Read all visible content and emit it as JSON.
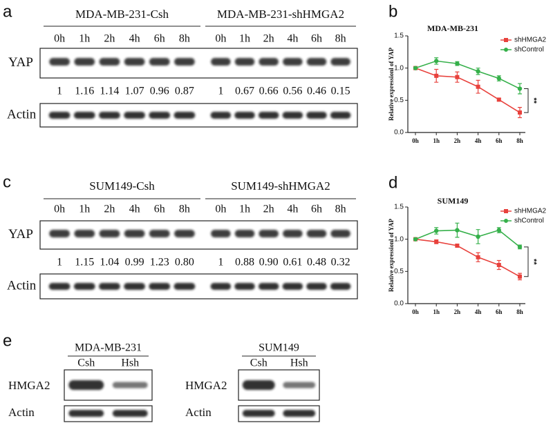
{
  "blots": [
    {
      "letter": "a",
      "groups": [
        {
          "name": "MDA-MB-231-Csh",
          "lanes": [
            "0h",
            "1h",
            "2h",
            "4h",
            "6h",
            "8h"
          ],
          "quant": [
            "1",
            "1.16",
            "1.14",
            "1.07",
            "0.96",
            "0.87"
          ]
        },
        {
          "name": "MDA-MB-231-shHMGA2",
          "lanes": [
            "0h",
            "1h",
            "2h",
            "4h",
            "6h",
            "8h"
          ],
          "quant": [
            "1",
            "0.67",
            "0.66",
            "0.56",
            "0.46",
            "0.15"
          ]
        }
      ],
      "rows": [
        "YAP",
        "Actin"
      ]
    },
    {
      "letter": "c",
      "groups": [
        {
          "name": "SUM149-Csh",
          "lanes": [
            "0h",
            "1h",
            "2h",
            "4h",
            "6h",
            "8h"
          ],
          "quant": [
            "1",
            "1.15",
            "1.04",
            "0.99",
            "1.23",
            "0.80"
          ]
        },
        {
          "name": "SUM149-shHMGA2",
          "lanes": [
            "0h",
            "1h",
            "2h",
            "4h",
            "6h",
            "8h"
          ],
          "quant": [
            "1",
            "0.88",
            "0.90",
            "0.61",
            "0.48",
            "0.32"
          ]
        }
      ],
      "rows": [
        "YAP",
        "Actin"
      ]
    },
    {
      "letter": "e",
      "groups": [
        {
          "name": "MDA-MB-231",
          "lanes": [
            "Csh",
            "Hsh"
          ],
          "rows": [
            "HMGA2",
            "Actin"
          ]
        },
        {
          "name": "SUM149",
          "lanes": [
            "Csh",
            "Hsh"
          ],
          "rows": [
            "HMGA2",
            "Actin"
          ]
        }
      ]
    }
  ],
  "chart_data": [
    {
      "type": "line",
      "letter": "b",
      "title": "MDA-MB-231",
      "ylabel": "Relative expressionl of YAP",
      "categories": [
        "0h",
        "1h",
        "2h",
        "4h",
        "6h",
        "8h"
      ],
      "ylim": [
        0,
        1.5
      ],
      "yticks": [
        {
          "value": 0,
          "label": "0.0"
        },
        0.5,
        {
          "value": 1,
          "label": "1.0"
        },
        1.5
      ],
      "legend": "upper right",
      "annotation": "**",
      "series": [
        {
          "name": "shHMGA2",
          "color": "#e8413c",
          "marker": "square",
          "values": [
            1,
            0.88,
            0.86,
            0.71,
            0.51,
            0.31
          ],
          "errors": [
            0,
            0.1,
            0.08,
            0.1,
            0.02,
            0.08
          ]
        },
        {
          "name": "shControl",
          "color": "#35b04a",
          "marker": "circle",
          "values": [
            1,
            1.11,
            1.07,
            0.95,
            0.84,
            0.68
          ],
          "errors": [
            0,
            0.05,
            0.03,
            0.05,
            0.04,
            0.08
          ]
        }
      ]
    },
    {
      "type": "line",
      "letter": "d",
      "title": "SUM149",
      "ylabel": "Relative expressionl of YAP",
      "categories": [
        "0h",
        "1h",
        "2h",
        "4h",
        "6h",
        "8h"
      ],
      "ylim": [
        0,
        1.5
      ],
      "yticks": [
        {
          "value": 0,
          "label": "0.0"
        },
        0.5,
        {
          "value": 1,
          "label": "1.0"
        },
        1.5
      ],
      "legend": "upper right",
      "annotation": "**",
      "series": [
        {
          "name": "shHMGA2",
          "color": "#e8413c",
          "marker": "square",
          "values": [
            1,
            0.96,
            0.9,
            0.72,
            0.6,
            0.42
          ],
          "errors": [
            0,
            0.03,
            0.02,
            0.07,
            0.07,
            0.05
          ]
        },
        {
          "name": "shControl",
          "color": "#35b04a",
          "marker": "circle",
          "values": [
            1,
            1.13,
            1.14,
            1.04,
            1.14,
            0.88
          ],
          "errors": [
            0,
            0.05,
            0.11,
            0.11,
            0.04,
            0.03
          ]
        }
      ]
    }
  ]
}
